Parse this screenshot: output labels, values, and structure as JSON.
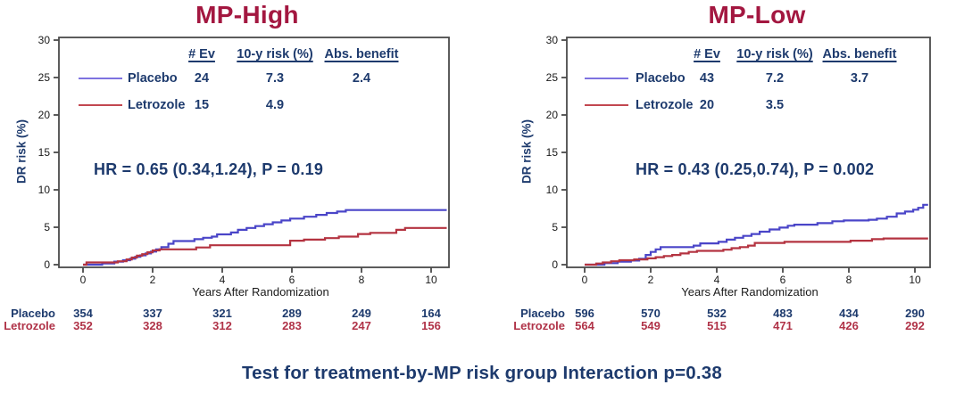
{
  "colors": {
    "navy": "#1d3a6d",
    "title_red": "#a31740",
    "axis": "#4a4a4a",
    "tick_text": "#1a1a1a",
    "placebo_line": "#4a45c8",
    "letrozole_line": "#b43340",
    "placebo_swatch": "#7e72e0",
    "letrozole_swatch": "#c24750",
    "at_risk_placebo": "#1d3a6d",
    "at_risk_letrozole": "#b03348"
  },
  "footer": "Test for treatment-by-MP risk group Interaction p=0.38",
  "chart_data": [
    {
      "type": "line",
      "title": "MP-High",
      "xlabel": "Years After Randomization",
      "ylabel": "DR risk (%)",
      "xticks": [
        0,
        2,
        4,
        6,
        8,
        10
      ],
      "yticks": [
        0,
        5,
        10,
        15,
        20,
        25,
        30
      ],
      "ylim": [
        0,
        30
      ],
      "xlim": [
        -0.65,
        10.5
      ],
      "hr_text": "HR = 0.65 (0.34,1.24), P = 0.19",
      "legend": {
        "headers": {
          "ev": "# Ev",
          "risk": "10-y risk (%)",
          "benefit": "Abs. benefit"
        },
        "rows": [
          {
            "name": "Placebo",
            "ev": "24",
            "risk": "7.3",
            "benefit": "2.4"
          },
          {
            "name": "Letrozole",
            "ev": "15",
            "risk": "4.9",
            "benefit": ""
          }
        ]
      },
      "series": [
        {
          "name": "Placebo",
          "color": "#4a45c8",
          "legend_color": "#7e72e0",
          "steps": [
            [
              0,
              0
            ],
            [
              0.55,
              0.15
            ],
            [
              0.9,
              0.4
            ],
            [
              1.15,
              0.6
            ],
            [
              1.35,
              0.8
            ],
            [
              1.5,
              1.05
            ],
            [
              1.65,
              1.25
            ],
            [
              1.8,
              1.5
            ],
            [
              1.95,
              1.75
            ],
            [
              2.1,
              2.05
            ],
            [
              2.25,
              2.35
            ],
            [
              2.45,
              2.8
            ],
            [
              2.6,
              3.15
            ],
            [
              3.2,
              3.4
            ],
            [
              3.45,
              3.6
            ],
            [
              3.7,
              3.75
            ],
            [
              3.85,
              4.05
            ],
            [
              4.25,
              4.3
            ],
            [
              4.45,
              4.65
            ],
            [
              4.7,
              4.9
            ],
            [
              4.95,
              5.15
            ],
            [
              5.2,
              5.4
            ],
            [
              5.45,
              5.65
            ],
            [
              5.7,
              5.9
            ],
            [
              5.95,
              6.15
            ],
            [
              6.35,
              6.4
            ],
            [
              6.7,
              6.65
            ],
            [
              7.0,
              6.9
            ],
            [
              7.3,
              7.1
            ],
            [
              7.55,
              7.3
            ],
            [
              10.45,
              7.3
            ]
          ]
        },
        {
          "name": "Letrozole",
          "color": "#b43340",
          "legend_color": "#c24750",
          "steps": [
            [
              0,
              0
            ],
            [
              0.1,
              0.3
            ],
            [
              1.0,
              0.45
            ],
            [
              1.25,
              0.7
            ],
            [
              1.4,
              0.95
            ],
            [
              1.55,
              1.2
            ],
            [
              1.7,
              1.4
            ],
            [
              1.85,
              1.65
            ],
            [
              2.0,
              1.9
            ],
            [
              2.2,
              2.05
            ],
            [
              3.25,
              2.3
            ],
            [
              3.65,
              2.6
            ],
            [
              5.95,
              3.2
            ],
            [
              6.35,
              3.35
            ],
            [
              6.95,
              3.55
            ],
            [
              7.35,
              3.75
            ],
            [
              7.9,
              4.1
            ],
            [
              8.25,
              4.25
            ],
            [
              9.0,
              4.65
            ],
            [
              9.25,
              4.9
            ],
            [
              10.45,
              4.9
            ]
          ]
        }
      ],
      "at_risk": {
        "rows": [
          {
            "name": "Placebo",
            "color": "#1d3a6d",
            "counts": [
              "354",
              "337",
              "321",
              "289",
              "249",
              "164"
            ]
          },
          {
            "name": "Letrozole",
            "color": "#b03348",
            "counts": [
              "352",
              "328",
              "312",
              "283",
              "247",
              "156"
            ]
          }
        ]
      }
    },
    {
      "type": "line",
      "title": "MP-Low",
      "xlabel": "Years After Randomization",
      "ylabel": "DR risk (%)",
      "xticks": [
        0,
        2,
        4,
        6,
        8,
        10
      ],
      "yticks": [
        0,
        5,
        10,
        15,
        20,
        25,
        30
      ],
      "ylim": [
        0,
        30
      ],
      "xlim": [
        -0.55,
        11.0
      ],
      "hr_text": "HR = 0.43 (0.25,0.74), P = 0.002",
      "legend": {
        "headers": {
          "ev": "# Ev",
          "risk": "10-y risk (%)",
          "benefit": "Abs. benefit"
        },
        "rows": [
          {
            "name": "Placebo",
            "ev": "43",
            "risk": "7.2",
            "benefit": "3.7"
          },
          {
            "name": "Letrozole",
            "ev": "20",
            "risk": "3.5",
            "benefit": ""
          }
        ]
      },
      "series": [
        {
          "name": "Placebo",
          "color": "#4a45c8",
          "legend_color": "#7e72e0",
          "steps": [
            [
              0,
              0
            ],
            [
              0.6,
              0.2
            ],
            [
              1.0,
              0.4
            ],
            [
              1.4,
              0.55
            ],
            [
              1.65,
              0.8
            ],
            [
              1.85,
              1.3
            ],
            [
              2.0,
              1.7
            ],
            [
              2.15,
              2.05
            ],
            [
              2.3,
              2.35
            ],
            [
              3.3,
              2.55
            ],
            [
              3.5,
              2.85
            ],
            [
              4.05,
              3.05
            ],
            [
              4.3,
              3.35
            ],
            [
              4.55,
              3.6
            ],
            [
              4.8,
              3.85
            ],
            [
              5.05,
              4.1
            ],
            [
              5.3,
              4.4
            ],
            [
              5.6,
              4.7
            ],
            [
              5.9,
              4.95
            ],
            [
              6.15,
              5.2
            ],
            [
              6.35,
              5.35
            ],
            [
              7.05,
              5.55
            ],
            [
              7.5,
              5.8
            ],
            [
              7.85,
              5.9
            ],
            [
              8.6,
              6.0
            ],
            [
              8.85,
              6.15
            ],
            [
              9.15,
              6.4
            ],
            [
              9.45,
              6.85
            ],
            [
              9.7,
              7.1
            ],
            [
              9.95,
              7.35
            ],
            [
              10.1,
              7.6
            ],
            [
              10.25,
              8.0
            ],
            [
              10.4,
              8.0
            ]
          ]
        },
        {
          "name": "Letrozole",
          "color": "#b43340",
          "legend_color": "#c24750",
          "steps": [
            [
              0,
              0
            ],
            [
              0.35,
              0.15
            ],
            [
              0.55,
              0.3
            ],
            [
              0.8,
              0.45
            ],
            [
              1.05,
              0.6
            ],
            [
              1.5,
              0.7
            ],
            [
              1.9,
              0.85
            ],
            [
              2.15,
              1.0
            ],
            [
              2.4,
              1.15
            ],
            [
              2.65,
              1.3
            ],
            [
              2.9,
              1.5
            ],
            [
              3.15,
              1.7
            ],
            [
              3.4,
              1.85
            ],
            [
              4.2,
              2.0
            ],
            [
              4.45,
              2.2
            ],
            [
              4.7,
              2.35
            ],
            [
              4.95,
              2.55
            ],
            [
              5.15,
              2.9
            ],
            [
              6.05,
              3.05
            ],
            [
              8.05,
              3.2
            ],
            [
              8.7,
              3.4
            ],
            [
              9.05,
              3.5
            ],
            [
              10.4,
              3.5
            ]
          ]
        }
      ],
      "at_risk": {
        "rows": [
          {
            "name": "Placebo",
            "color": "#1d3a6d",
            "counts": [
              "596",
              "570",
              "532",
              "483",
              "434",
              "290"
            ]
          },
          {
            "name": "Letrozole",
            "color": "#b03348",
            "counts": [
              "564",
              "549",
              "515",
              "471",
              "426",
              "292"
            ]
          }
        ]
      }
    }
  ]
}
